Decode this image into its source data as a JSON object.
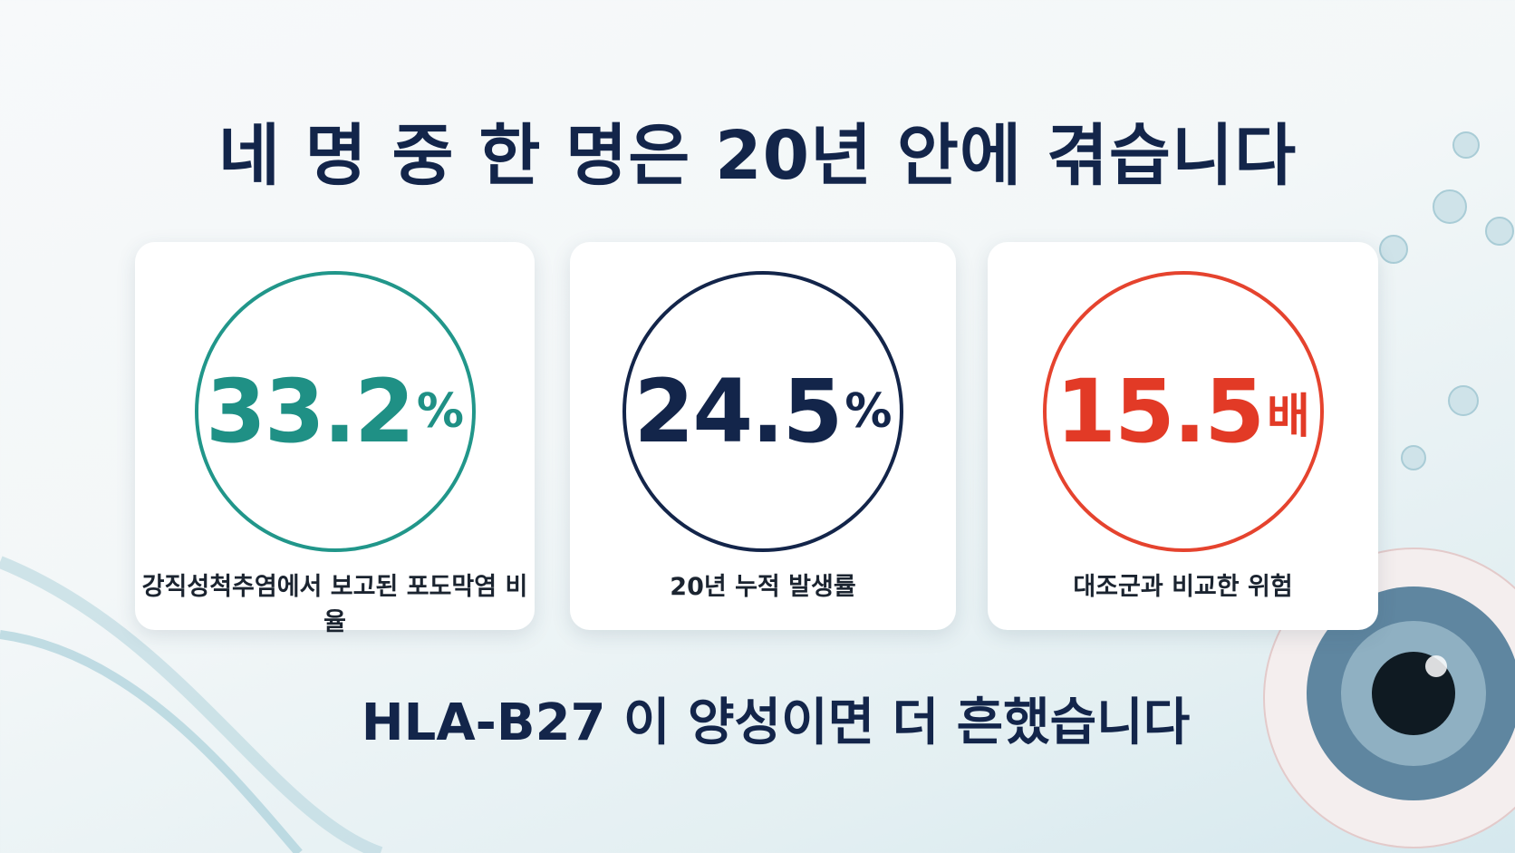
{
  "title": "네 명 중 한 명은 20년 안에 겪습니다",
  "cards": [
    {
      "value": "33.2",
      "unit": "%",
      "caption": "강직성척추염에서 보고된 포도막염 비율"
    },
    {
      "value": "24.5",
      "unit": "%",
      "caption": "20년 누적 발생률"
    },
    {
      "value": "15.5",
      "unit": "배",
      "caption": "대조군과 비교한 위험"
    }
  ],
  "footer": "HLA-B27 이 양성이면 더 흔했습니다"
}
